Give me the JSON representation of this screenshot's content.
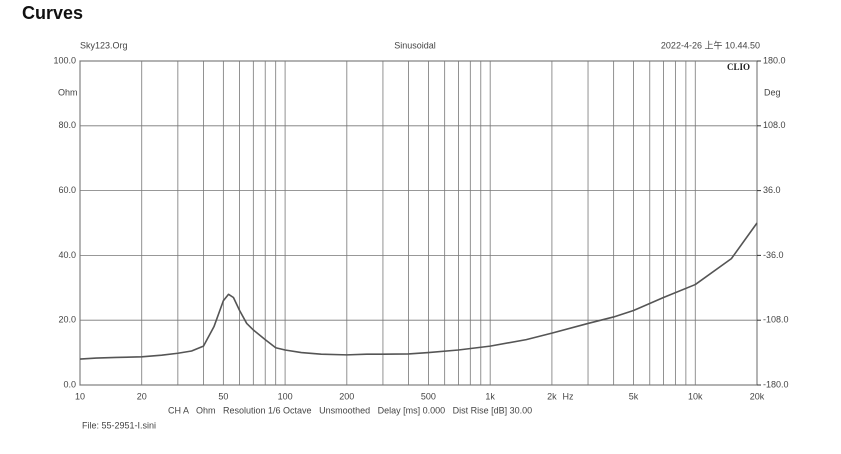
{
  "chart_data": {
    "type": "line",
    "title": "Curves",
    "header_left": "Sky123.Org",
    "header_center": "Sinusoidal",
    "header_right": "2022-4-26 上午 10.44.50",
    "brand": "CLIO",
    "y_unit": "Ohm",
    "y2_unit": "Deg",
    "x_unit": "Hz",
    "settings_line": "CH A   Ohm   Resolution 1/6 Octave   Unsmoothed   Delay [ms] 0.000   Dist Rise [dB] 30.00",
    "file_line": "File: 55-2951-I.sini",
    "log_x": true,
    "grid": true,
    "color": "#555555",
    "xlim": [
      10,
      20000
    ],
    "xticks": [
      10,
      20,
      50,
      100,
      200,
      500,
      {
        "value": 1000,
        "label": "1k"
      },
      {
        "value": 2000,
        "label": "2k"
      },
      {
        "value": 5000,
        "label": "5k"
      },
      {
        "value": 10000,
        "label": "10k"
      },
      {
        "value": 20000,
        "label": "20k"
      }
    ],
    "x_minor_ticks": [
      30,
      40,
      60,
      70,
      80,
      90,
      300,
      400,
      600,
      700,
      800,
      900,
      3000,
      4000,
      6000,
      7000,
      8000,
      9000
    ],
    "ylim": [
      0,
      100
    ],
    "yticks": [
      {
        "value": 0,
        "label": "0.0"
      },
      {
        "value": 20,
        "label": "20.0"
      },
      {
        "value": 40,
        "label": "40.0"
      },
      {
        "value": 60,
        "label": "60.0"
      },
      {
        "value": 80,
        "label": "80.0"
      },
      {
        "value": 100,
        "label": "100.0"
      }
    ],
    "y2lim": [
      -180,
      180
    ],
    "y2ticks": [
      {
        "value": -180,
        "label": "-180.0"
      },
      {
        "value": -108,
        "label": "-108.0"
      },
      {
        "value": -36,
        "label": "-36.0"
      },
      {
        "value": 36,
        "label": "36.0"
      },
      {
        "value": 108,
        "label": "108.0"
      },
      {
        "value": 180,
        "label": "180.0"
      }
    ],
    "x": [
      10,
      12,
      15,
      20,
      25,
      30,
      35,
      40,
      45,
      50,
      53,
      56,
      60,
      65,
      70,
      80,
      90,
      100,
      120,
      150,
      200,
      250,
      300,
      400,
      500,
      700,
      1000,
      1500,
      2000,
      3000,
      4000,
      5000,
      7000,
      10000,
      15000,
      20000
    ],
    "values": [
      8,
      8.3,
      8.5,
      8.7,
      9.2,
      9.8,
      10.5,
      12,
      18,
      26,
      28,
      27,
      23,
      19,
      17,
      14,
      11.5,
      10.8,
      10,
      9.5,
      9.3,
      9.5,
      9.5,
      9.6,
      10,
      10.8,
      12,
      14,
      16,
      19,
      21,
      23,
      27,
      31,
      39,
      50
    ]
  }
}
